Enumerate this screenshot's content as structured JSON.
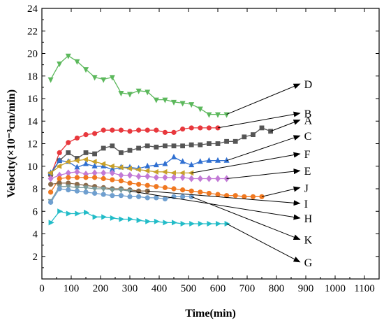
{
  "chart_data": {
    "type": "line",
    "xlabel": "Time(min)",
    "ylabel": "Velocity(×10⁻³cm/min)",
    "xlim": [
      0,
      1150
    ],
    "ylim": [
      0,
      24
    ],
    "xticks": [
      0,
      100,
      200,
      300,
      400,
      500,
      600,
      700,
      800,
      900,
      1000,
      1100
    ],
    "yticks": [
      2,
      4,
      6,
      8,
      10,
      12,
      14,
      16,
      18,
      20,
      22,
      24
    ],
    "grid": false,
    "legend": "none",
    "series": [
      {
        "name": "D",
        "color": "#5cb85c",
        "marker": "triangle-down",
        "x": [
          30,
          60,
          90,
          120,
          150,
          180,
          210,
          240,
          270,
          300,
          330,
          360,
          390,
          420,
          450,
          480,
          510,
          540,
          570,
          600,
          630
        ],
        "y": [
          17.7,
          19.1,
          19.8,
          19.3,
          18.6,
          17.9,
          17.7,
          17.9,
          16.5,
          16.4,
          16.7,
          16.6,
          15.9,
          15.9,
          15.7,
          15.6,
          15.5,
          15.1,
          14.6,
          14.6,
          14.6
        ]
      },
      {
        "name": "B",
        "color": "#e8383d",
        "marker": "circle",
        "x": [
          30,
          60,
          90,
          120,
          150,
          180,
          210,
          240,
          270,
          300,
          330,
          360,
          390,
          420,
          450,
          480,
          510,
          540,
          570,
          600
        ],
        "y": [
          9.2,
          11.2,
          12.1,
          12.5,
          12.8,
          12.9,
          13.2,
          13.2,
          13.2,
          13.1,
          13.2,
          13.2,
          13.2,
          13.0,
          13.0,
          13.3,
          13.4,
          13.4,
          13.4,
          13.4
        ]
      },
      {
        "name": "A",
        "color": "#555555",
        "marker": "square",
        "x": [
          30,
          60,
          90,
          120,
          150,
          180,
          210,
          240,
          270,
          300,
          330,
          360,
          390,
          420,
          450,
          480,
          510,
          540,
          570,
          600,
          630,
          660,
          690,
          720,
          750,
          780
        ],
        "y": [
          9.3,
          10.5,
          11.2,
          10.7,
          11.2,
          11.1,
          11.6,
          11.8,
          11.2,
          11.4,
          11.6,
          11.8,
          11.7,
          11.8,
          11.8,
          11.8,
          11.9,
          11.9,
          12.0,
          12.0,
          12.2,
          12.2,
          12.6,
          12.8,
          13.4,
          13.1
        ]
      },
      {
        "name": "C",
        "color": "#2f6fd1",
        "marker": "triangle-up",
        "x": [
          30,
          60,
          90,
          120,
          150,
          180,
          210,
          240,
          270,
          300,
          330,
          360,
          390,
          420,
          450,
          480,
          510,
          540,
          570,
          600,
          630
        ],
        "y": [
          9.4,
          10.5,
          10.4,
          9.9,
          10.2,
          10.0,
          10.0,
          9.7,
          9.9,
          9.9,
          9.8,
          10.0,
          10.1,
          10.2,
          10.8,
          10.4,
          10.1,
          10.4,
          10.5,
          10.5,
          10.5
        ]
      },
      {
        "name": "F",
        "color": "#c8a02a",
        "marker": "triangle-left",
        "x": [
          30,
          60,
          90,
          120,
          150,
          180,
          210,
          240,
          270,
          300,
          330,
          360,
          390,
          420,
          450,
          480,
          510
        ],
        "y": [
          9.4,
          10.0,
          10.4,
          10.5,
          10.6,
          10.4,
          10.2,
          10.0,
          9.9,
          9.8,
          9.7,
          9.6,
          9.5,
          9.5,
          9.4,
          9.4,
          9.4
        ]
      },
      {
        "name": "E",
        "color": "#c27ad6",
        "marker": "diamond",
        "x": [
          30,
          60,
          90,
          120,
          150,
          180,
          210,
          240,
          270,
          300,
          330,
          360,
          390,
          420,
          450,
          480,
          510,
          540,
          570,
          600,
          630
        ],
        "y": [
          8.9,
          9.2,
          9.4,
          9.5,
          9.3,
          9.4,
          9.4,
          9.4,
          9.2,
          9.2,
          9.1,
          9.1,
          9.0,
          9.0,
          9.0,
          9.0,
          8.9,
          8.9,
          8.9,
          8.9,
          8.9
        ]
      },
      {
        "name": "J",
        "color": "#f07820",
        "marker": "circle",
        "x": [
          30,
          60,
          90,
          120,
          150,
          180,
          210,
          240,
          270,
          300,
          330,
          360,
          390,
          420,
          450,
          480,
          510,
          540,
          570,
          600,
          630,
          660,
          690,
          720,
          750
        ],
        "y": [
          7.7,
          8.9,
          9.0,
          9.0,
          9.0,
          9.0,
          8.9,
          8.8,
          8.7,
          8.5,
          8.4,
          8.3,
          8.2,
          8.1,
          8.0,
          7.9,
          7.8,
          7.7,
          7.6,
          7.5,
          7.4,
          7.4,
          7.3,
          7.3,
          7.3
        ]
      },
      {
        "name": "I",
        "color": "#8a6a4a",
        "marker": "circle",
        "x": [
          30,
          60,
          90,
          120,
          150,
          180,
          210,
          240,
          270,
          300,
          330,
          360
        ],
        "y": [
          8.4,
          8.5,
          8.5,
          8.4,
          8.3,
          8.2,
          8.1,
          8.0,
          8.0,
          7.9,
          7.8,
          7.8
        ]
      },
      {
        "name": "H",
        "color": "#7a9a9a",
        "marker": "triangle-down",
        "x": [
          30,
          60,
          90,
          120,
          150,
          180,
          210,
          240,
          270,
          300
        ],
        "y": [
          6.9,
          8.2,
          8.2,
          8.1,
          8.1,
          8.0,
          8.0,
          7.9,
          7.9,
          7.8
        ]
      },
      {
        "name": "K",
        "color": "#6f9fcf",
        "marker": "circle",
        "x": [
          30,
          60,
          90,
          120,
          150,
          180,
          210,
          240,
          270,
          300,
          330,
          360,
          390,
          420,
          450,
          480,
          510
        ],
        "y": [
          6.8,
          8.0,
          7.9,
          7.8,
          7.7,
          7.6,
          7.5,
          7.4,
          7.4,
          7.3,
          7.3,
          7.2,
          7.2,
          7.1,
          7.3,
          7.3,
          7.3
        ]
      },
      {
        "name": "G",
        "color": "#22bcc8",
        "marker": "triangle-right",
        "x": [
          30,
          60,
          90,
          120,
          150,
          180,
          210,
          240,
          270,
          300,
          330,
          360,
          390,
          420,
          450,
          480,
          510,
          540,
          570,
          600,
          630
        ],
        "y": [
          5.0,
          6.0,
          5.8,
          5.8,
          5.9,
          5.5,
          5.5,
          5.4,
          5.3,
          5.3,
          5.2,
          5.1,
          5.1,
          5.0,
          5.0,
          4.9,
          4.9,
          4.9,
          4.9,
          4.9,
          4.9
        ]
      }
    ],
    "annotations": [
      {
        "label": "D",
        "from_x": 630,
        "from_y": 14.6,
        "to_x": 880,
        "to_y": 17.3,
        "text_y": 17.3
      },
      {
        "label": "B",
        "from_x": 600,
        "from_y": 13.4,
        "to_x": 880,
        "to_y": 14.7,
        "text_y": 14.7
      },
      {
        "label": "A",
        "from_x": 780,
        "from_y": 13.1,
        "to_x": 880,
        "to_y": 14.1,
        "text_y": 14.1
      },
      {
        "label": "C",
        "from_x": 630,
        "from_y": 10.5,
        "to_x": 880,
        "to_y": 12.7,
        "text_y": 12.7
      },
      {
        "label": "F",
        "from_x": 510,
        "from_y": 9.4,
        "to_x": 880,
        "to_y": 11.1,
        "text_y": 11.1
      },
      {
        "label": "E",
        "from_x": 630,
        "from_y": 8.9,
        "to_x": 880,
        "to_y": 9.6,
        "text_y": 9.6
      },
      {
        "label": "J",
        "from_x": 750,
        "from_y": 7.3,
        "to_x": 880,
        "to_y": 8.1,
        "text_y": 8.1
      },
      {
        "label": "I",
        "from_x": 360,
        "from_y": 7.8,
        "to_x": 880,
        "to_y": 6.7,
        "text_y": 6.7
      },
      {
        "label": "H",
        "from_x": 300,
        "from_y": 7.8,
        "to_x": 880,
        "to_y": 5.4,
        "text_y": 5.4
      },
      {
        "label": "K",
        "from_x": 510,
        "from_y": 7.3,
        "to_x": 880,
        "to_y": 3.5,
        "text_y": 3.5
      },
      {
        "label": "G",
        "from_x": 630,
        "from_y": 4.9,
        "to_x": 880,
        "to_y": 1.5,
        "text_y": 1.5
      }
    ]
  }
}
